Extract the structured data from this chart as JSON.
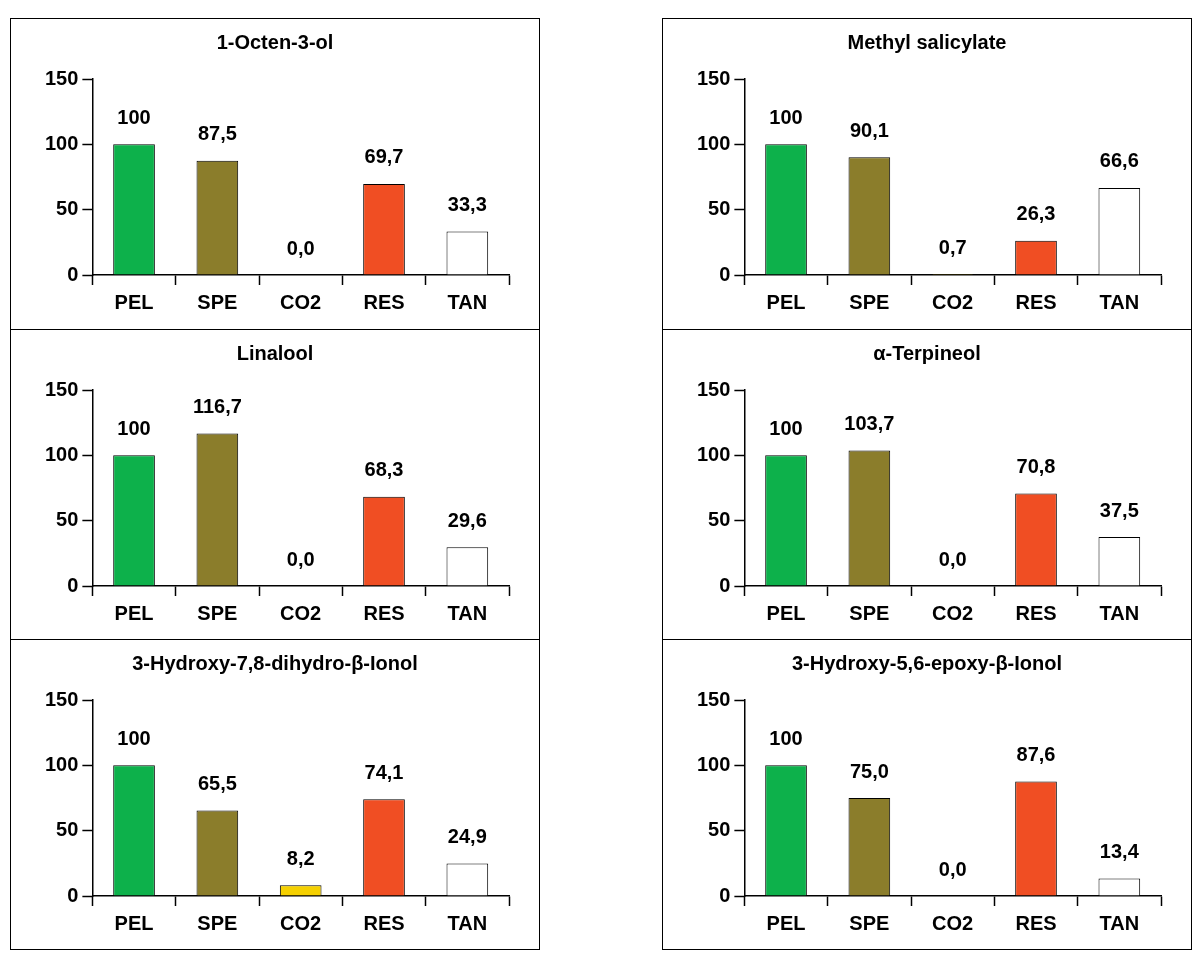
{
  "chart_data": [
    {
      "type": "bar",
      "title": "1-Octen-3-ol",
      "categories": [
        "PEL",
        "SPE",
        "CO2",
        "RES",
        "TAN"
      ],
      "values": [
        100,
        87.5,
        0,
        69.7,
        33.3
      ],
      "colors": [
        "#0db14b",
        "#8b7d2b",
        "#f5d000",
        "#f04e23",
        "#ffffff"
      ],
      "value_labels": [
        "100",
        "87,5",
        "0,0",
        "69,7",
        "33,3"
      ],
      "ylim": [
        0,
        150
      ],
      "yticks": [
        0,
        50,
        100,
        150
      ],
      "grid": false,
      "legend": false
    },
    {
      "type": "bar",
      "title": "Methyl salicylate",
      "categories": [
        "PEL",
        "SPE",
        "CO2",
        "RES",
        "TAN"
      ],
      "values": [
        100,
        90.1,
        0.7,
        26.3,
        66.6
      ],
      "colors": [
        "#0db14b",
        "#8b7d2b",
        "#f5d000",
        "#f04e23",
        "#ffffff"
      ],
      "value_labels": [
        "100",
        "90,1",
        "0,7",
        "26,3",
        "66,6"
      ],
      "ylim": [
        0,
        150
      ],
      "yticks": [
        0,
        50,
        100,
        150
      ],
      "grid": false,
      "legend": false
    },
    {
      "type": "bar",
      "title": "Linalool",
      "categories": [
        "PEL",
        "SPE",
        "CO2",
        "RES",
        "TAN"
      ],
      "values": [
        100,
        116.7,
        0,
        68.3,
        29.6
      ],
      "colors": [
        "#0db14b",
        "#8b7d2b",
        "#f5d000",
        "#f04e23",
        "#ffffff"
      ],
      "value_labels": [
        "100",
        "116,7",
        "0,0",
        "68,3",
        "29,6"
      ],
      "ylim": [
        0,
        150
      ],
      "yticks": [
        0,
        50,
        100,
        150
      ],
      "grid": false,
      "legend": false
    },
    {
      "type": "bar",
      "title": "α-Terpineol",
      "categories": [
        "PEL",
        "SPE",
        "CO2",
        "RES",
        "TAN"
      ],
      "values": [
        100,
        103.7,
        0,
        70.8,
        37.5
      ],
      "colors": [
        "#0db14b",
        "#8b7d2b",
        "#f5d000",
        "#f04e23",
        "#ffffff"
      ],
      "value_labels": [
        "100",
        "103,7",
        "0,0",
        "70,8",
        "37,5"
      ],
      "ylim": [
        0,
        150
      ],
      "yticks": [
        0,
        50,
        100,
        150
      ],
      "grid": false,
      "legend": false
    },
    {
      "type": "bar",
      "title": "3-Hydroxy-7,8-dihydro-β-Ionol",
      "categories": [
        "PEL",
        "SPE",
        "CO2",
        "RES",
        "TAN"
      ],
      "values": [
        100,
        65.5,
        8.2,
        74.1,
        24.9
      ],
      "colors": [
        "#0db14b",
        "#8b7d2b",
        "#f5d000",
        "#f04e23",
        "#ffffff"
      ],
      "value_labels": [
        "100",
        "65,5",
        "8,2",
        "74,1",
        "24,9"
      ],
      "ylim": [
        0,
        150
      ],
      "yticks": [
        0,
        50,
        100,
        150
      ],
      "grid": false,
      "legend": false
    },
    {
      "type": "bar",
      "title": "3-Hydroxy-5,6-epoxy-β-Ionol",
      "categories": [
        "PEL",
        "SPE",
        "CO2",
        "RES",
        "TAN"
      ],
      "values": [
        100,
        75.0,
        0,
        87.6,
        13.4
      ],
      "colors": [
        "#0db14b",
        "#8b7d2b",
        "#f5d000",
        "#f04e23",
        "#ffffff"
      ],
      "value_labels": [
        "100",
        "75,0",
        "0,0",
        "87,6",
        "13,4"
      ],
      "ylim": [
        0,
        150
      ],
      "yticks": [
        0,
        50,
        100,
        150
      ],
      "grid": false,
      "legend": false
    }
  ]
}
